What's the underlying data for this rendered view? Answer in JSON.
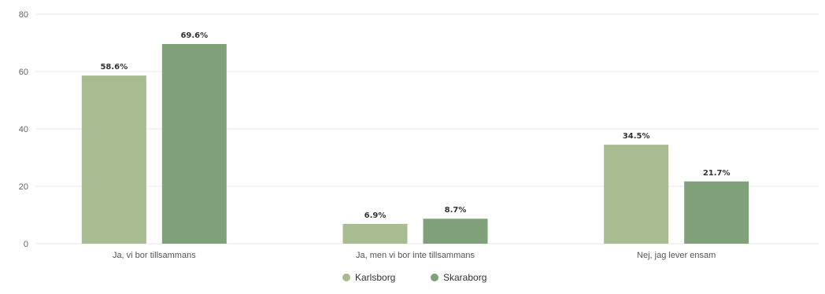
{
  "chart_data": {
    "type": "bar",
    "categories": [
      "Ja, vi bor tillsammans",
      "Ja, men vi bor inte tillsammans",
      "Nej, jag lever ensam"
    ],
    "series": [
      {
        "name": "Karlsborg",
        "values": [
          58.6,
          6.9,
          34.5
        ],
        "labels": [
          "58.6%",
          "6.9%",
          "34.5%"
        ],
        "color": "#a8bb91"
      },
      {
        "name": "Skaraborg",
        "values": [
          69.6,
          8.7,
          21.7
        ],
        "labels": [
          "69.6%",
          "8.7%",
          "21.7%"
        ],
        "color": "#80a07a"
      }
    ],
    "yticks": [
      "0",
      "20",
      "40",
      "60",
      "80"
    ],
    "ylim": [
      0,
      80
    ],
    "grid": true,
    "legend_position": "bottom-center"
  }
}
